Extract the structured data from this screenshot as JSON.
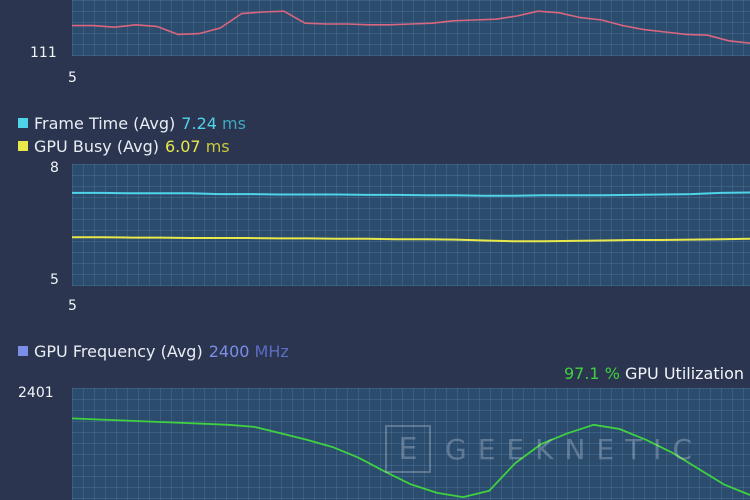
{
  "fps_panel": {
    "y_min_label": "111",
    "x_axis_label": "5",
    "line_color": "#d9667e"
  },
  "frametime_panel": {
    "legend": [
      {
        "name": "Frame Time (Avg)",
        "value": "7.24",
        "unit": "ms",
        "swatch_color": "#4fd3e8",
        "value_color": "#4fd3e8"
      },
      {
        "name": "GPU Busy (Avg)",
        "value": "6.07",
        "unit": "ms",
        "swatch_color": "#e8e84a",
        "value_color": "#e8e84a"
      }
    ],
    "y_max_label": "8",
    "y_min_label": "5",
    "x_axis_label": "5",
    "ylim": [
      5,
      8
    ]
  },
  "gpu_panel": {
    "legend": [
      {
        "name": "GPU Frequency (Avg)",
        "value": "2400",
        "unit": "MHz",
        "swatch_color": "#7b8ee8",
        "value_color": "#7b8ee8"
      }
    ],
    "utilization": {
      "value": "97.1",
      "unit": "%",
      "label": "GPU Utilization",
      "color": "#3fd13f"
    },
    "y_max_label": "2401",
    "line_color": "#3fd13f"
  },
  "watermark": {
    "box_letter": "E",
    "text": "GEEKNETIC"
  },
  "chart_data": [
    {
      "type": "line",
      "series": [
        {
          "values": [
            113.8,
            113.8,
            113.6,
            113.9,
            113.7,
            112.7,
            112.8,
            113.5,
            115.3,
            115.5,
            115.6,
            114.1,
            114.0,
            114.0,
            113.9,
            113.9,
            114.0,
            114.1,
            114.4,
            114.5,
            114.6,
            115.0,
            115.6,
            115.4,
            114.8,
            114.5,
            113.8,
            113.3,
            113.0,
            112.7,
            112.6,
            111.9,
            111.6
          ]
        }
      ]
    },
    {
      "type": "line",
      "ylim": [
        5,
        8
      ],
      "series": [
        {
          "values": [
            7.29,
            7.29,
            7.28,
            7.28,
            7.28,
            7.26,
            7.26,
            7.25,
            7.25,
            7.25,
            7.24,
            7.24,
            7.23,
            7.23,
            7.22,
            7.22,
            7.23,
            7.23,
            7.23,
            7.24,
            7.25,
            7.26,
            7.29,
            7.3
          ]
        },
        {
          "values": [
            6.2,
            6.2,
            6.19,
            6.19,
            6.18,
            6.18,
            6.18,
            6.17,
            6.17,
            6.16,
            6.16,
            6.15,
            6.15,
            6.14,
            6.12,
            6.1,
            6.1,
            6.11,
            6.12,
            6.13,
            6.13,
            6.14,
            6.15,
            6.16
          ]
        }
      ]
    },
    {
      "type": "line",
      "series": [
        {
          "values": [
            0.72,
            0.71,
            0.7,
            0.69,
            0.68,
            0.67,
            0.66,
            0.64,
            0.58,
            0.52,
            0.45,
            0.35,
            0.22,
            0.1,
            0.02,
            -0.02,
            0.04,
            0.3,
            0.48,
            0.58,
            0.66,
            0.62,
            0.52,
            0.4,
            0.25,
            0.1,
            0.0
          ]
        }
      ]
    }
  ]
}
